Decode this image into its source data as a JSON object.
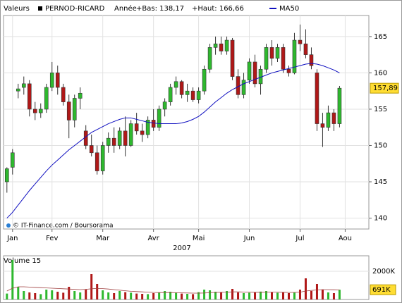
{
  "header": {
    "label": "Valeurs",
    "period": "Année",
    "low": "+Bas: 138,17",
    "high": "+Haut: 166,66"
  },
  "chart_data": {
    "type": "candlestick",
    "x_label": "2007",
    "source": "© IT-Finance.com / Boursorama",
    "xlim": [
      -0.6,
      64.2
    ],
    "xticks": [
      {
        "value": 1,
        "label": "Jan"
      },
      {
        "value": 8,
        "label": "Fev"
      },
      {
        "value": 17,
        "label": "Mar"
      },
      {
        "value": 26,
        "label": "Avr"
      },
      {
        "value": 34,
        "label": "Mai"
      },
      {
        "value": 43,
        "label": "Jun"
      },
      {
        "value": 52,
        "label": "Jul"
      },
      {
        "value": 60,
        "label": "Aou"
      }
    ],
    "ylim": [
      138.5,
      167.9
    ],
    "yticks": [
      140,
      145,
      150,
      155,
      160,
      165
    ],
    "grid": true,
    "up_color": "#2eb82e",
    "down_color": "#b01818",
    "current": {
      "value": 157.89,
      "label": "157,89"
    },
    "series": [
      {
        "name": "PERNOD-RICARD",
        "open": [
          145,
          147,
          157.5,
          158,
          158.5,
          155,
          154.5,
          155,
          158,
          160,
          158,
          156,
          153.5,
          156.5,
          152,
          150,
          149,
          146.5,
          150,
          151,
          150,
          152,
          150,
          153,
          152,
          151.5,
          153.5,
          152.5,
          155,
          156,
          158,
          158.8,
          157,
          157.5,
          156.3,
          157.5,
          160.5,
          163.5,
          164,
          163,
          164.5,
          159.5,
          157,
          159,
          161.5,
          158.5,
          160.5,
          163.5,
          162,
          163.5,
          160.5,
          160,
          164.5,
          164,
          162.5,
          160,
          153,
          152.5,
          154.5,
          153
        ],
        "high": [
          147,
          149.5,
          158.5,
          159.5,
          159,
          156,
          155.8,
          158.5,
          161.5,
          161,
          158.5,
          157,
          157,
          158,
          152.8,
          151.5,
          150,
          150.5,
          151.8,
          152.5,
          152.5,
          154,
          153.5,
          154.5,
          153,
          154,
          155,
          155.5,
          156.5,
          158.5,
          159.5,
          159,
          158.5,
          158,
          158,
          161,
          164,
          165,
          165,
          165,
          164.8,
          160.5,
          160,
          162,
          162.5,
          161,
          164,
          164.5,
          164,
          164,
          161,
          165.5,
          166.66,
          166,
          163.5,
          160.5,
          154.5,
          155.5,
          155,
          158.2
        ],
        "low": [
          143.5,
          146,
          156.5,
          157,
          154,
          153.5,
          153.8,
          154.5,
          157.5,
          157,
          155.5,
          151,
          152.5,
          155,
          149.5,
          148.5,
          146,
          146,
          149,
          149,
          149.5,
          148.5,
          149.8,
          151.5,
          150.5,
          151,
          152,
          152,
          154,
          155.5,
          157,
          156.5,
          156,
          156,
          155.8,
          157,
          160,
          162.5,
          162.5,
          162.5,
          159,
          156.5,
          156.5,
          158.5,
          158,
          157,
          160,
          161,
          161.5,
          160,
          159.5,
          159.8,
          163,
          162,
          160.5,
          152,
          149.8,
          152,
          152,
          152.5
        ],
        "close": [
          146.8,
          149,
          157.8,
          158.5,
          155,
          154.5,
          155,
          158,
          160,
          158,
          156,
          153.5,
          156.5,
          157.2,
          150,
          149,
          146.5,
          150,
          151,
          150,
          152,
          150,
          153,
          152,
          151.5,
          153.5,
          152.5,
          155,
          156,
          158,
          158.8,
          157,
          157.5,
          156.3,
          157.5,
          160.5,
          163.5,
          164,
          163,
          164.5,
          159.5,
          157,
          159,
          161.5,
          158.5,
          160.5,
          163.5,
          162,
          163.5,
          160.5,
          160,
          164.5,
          164,
          162.5,
          161,
          153,
          152.5,
          154.5,
          153,
          157.89
        ]
      },
      {
        "name": "MA50",
        "color": "#1010c0",
        "values": [
          140,
          140.8,
          141.8,
          142.8,
          143.8,
          144.7,
          145.6,
          146.5,
          147.3,
          148,
          148.7,
          149.4,
          150,
          150.6,
          151.2,
          151.8,
          152.2,
          152.6,
          153,
          153.3,
          153.6,
          153.8,
          153.8,
          153.6,
          153.4,
          153.2,
          153.1,
          153,
          153,
          153,
          153,
          153.1,
          153.3,
          153.6,
          154,
          154.6,
          155.3,
          156,
          156.6,
          157.2,
          157.7,
          158.1,
          158.5,
          158.8,
          159.1,
          159.4,
          159.7,
          160,
          160.2,
          160.4,
          160.6,
          160.8,
          161,
          161.2,
          161.3,
          161.2,
          161,
          160.7,
          160.4,
          160
        ]
      }
    ],
    "volume": {
      "title": "Volume 15",
      "ylim": [
        0,
        3100
      ],
      "yticks": [
        {
          "value": 2000,
          "label": "2000K"
        }
      ],
      "current": {
        "value": 691,
        "label": "691K"
      },
      "ma_color": "#a04040",
      "values": [
        420,
        2800,
        900,
        600,
        500,
        450,
        380,
        700,
        650,
        550,
        480,
        900,
        600,
        500,
        700,
        1800,
        1100,
        650,
        500,
        450,
        600,
        520,
        480,
        420,
        400,
        380,
        450,
        500,
        600,
        550,
        480,
        420,
        400,
        380,
        520,
        700,
        650,
        550,
        500,
        600,
        750,
        500,
        450,
        480,
        520,
        560,
        600,
        500,
        480,
        520,
        450,
        500,
        700,
        1500,
        600,
        1100,
        700,
        500,
        450,
        691
      ],
      "ma": [
        600,
        800,
        900,
        900,
        880,
        860,
        840,
        820,
        800,
        780,
        760,
        740,
        720,
        700,
        720,
        760,
        780,
        770,
        740,
        700,
        660,
        620,
        580,
        560,
        540,
        520,
        500,
        490,
        490,
        490,
        480,
        470,
        460,
        450,
        450,
        460,
        480,
        500,
        510,
        520,
        540,
        540,
        530,
        520,
        510,
        510,
        520,
        520,
        520,
        510,
        500,
        500,
        520,
        600,
        640,
        680,
        700,
        700,
        690,
        680
      ]
    }
  }
}
